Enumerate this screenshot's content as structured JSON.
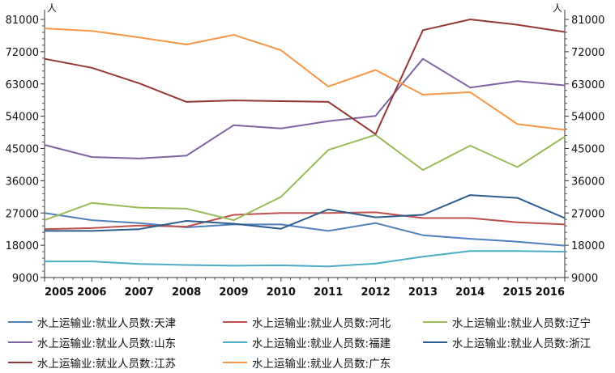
{
  "chart_data": {
    "type": "line",
    "x": [
      "2005",
      "2006",
      "2007",
      "2008",
      "2009",
      "2010",
      "2011",
      "2012",
      "2013",
      "2014",
      "2015",
      "2016"
    ],
    "ylim": [
      9000,
      81000
    ],
    "yticks": [
      "9000",
      "18000",
      "27000",
      "36000",
      "45000",
      "54000",
      "63000",
      "72000",
      "81000"
    ],
    "y_unit_left": "人",
    "y_unit_right": "人",
    "grid": false,
    "legend_position": "bottom",
    "series": [
      {
        "name": "水上运输业:就业人员数:天津",
        "color": "#4e7fbf",
        "values": [
          27000,
          25000,
          24200,
          23000,
          23800,
          23800,
          22000,
          24200,
          20800,
          19800,
          19000,
          17900
        ]
      },
      {
        "name": "水上运输业:就业人员数:河北",
        "color": "#c0504d",
        "values": [
          22500,
          22800,
          23500,
          23200,
          26500,
          27000,
          27000,
          27200,
          25600,
          25600,
          24400,
          23800
        ]
      },
      {
        "name": "水上运输业:就业人员数:辽宁",
        "color": "#9bbb59",
        "values": [
          25000,
          29800,
          28500,
          28200,
          25000,
          31500,
          44600,
          48800,
          39000,
          45800,
          39800,
          48300
        ]
      },
      {
        "name": "水上运输业:就业人员数:山东",
        "color": "#8064a2",
        "values": [
          46000,
          42600,
          42200,
          43000,
          51500,
          50600,
          52600,
          54100,
          70000,
          62000,
          63800,
          62600
        ]
      },
      {
        "name": "水上运输业:就业人员数:福建",
        "color": "#4bacc6",
        "values": [
          13500,
          13500,
          12800,
          12500,
          12300,
          12400,
          12100,
          12900,
          14800,
          16400,
          16400,
          16200
        ]
      },
      {
        "name": "水上运输业:就业人员数:浙江",
        "color": "#2c5d8f",
        "values": [
          22000,
          22000,
          22500,
          24800,
          24000,
          22600,
          28000,
          25800,
          26500,
          32000,
          31200,
          25600
        ]
      },
      {
        "name": "水上运输业:就业人员数:江苏",
        "color": "#953735",
        "values": [
          70000,
          67500,
          63200,
          58000,
          58400,
          58200,
          58000,
          49000,
          78000,
          81000,
          79500,
          77500
        ]
      },
      {
        "name": "水上运输业:就业人员数:广东",
        "color": "#f79646",
        "values": [
          78500,
          77800,
          76000,
          74000,
          76700,
          72400,
          62300,
          66900,
          60000,
          60700,
          51800,
          50200
        ]
      }
    ]
  }
}
